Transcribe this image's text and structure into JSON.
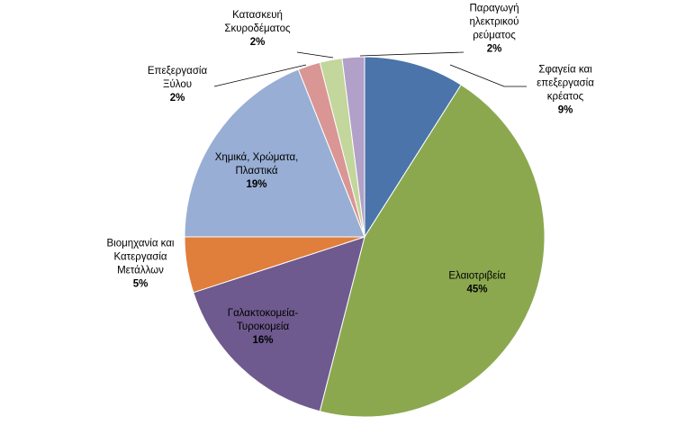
{
  "chart_data": {
    "type": "pie",
    "title": "",
    "slices": [
      {
        "label": "Σφαγεία και επεξεργασία κρέατος",
        "label_lines": [
          "Σφαγεία και",
          "επεξεργασία",
          "κρέατος"
        ],
        "value": 9,
        "value_label": "9%",
        "color": "#4A74AA"
      },
      {
        "label": "Ελαιοτριβεία",
        "label_lines": [
          "Ελαιοτριβεία"
        ],
        "value": 45,
        "value_label": "45%",
        "color": "#8BA84F"
      },
      {
        "label": "Γαλακτοκομεία-Τυροκομεία",
        "label_lines": [
          "Γαλακτοκομεία-",
          "Τυροκομεία"
        ],
        "value": 16,
        "value_label": "16%",
        "color": "#6E5A8E"
      },
      {
        "label": "Βιομηχανία και Κατεργασία Μετάλλων",
        "label_lines": [
          "Βιομηχανία και",
          "Κατεργασία",
          "Μετάλλων"
        ],
        "value": 5,
        "value_label": "5%",
        "color": "#E07E3C"
      },
      {
        "label": "Χημικά, Χρώματα, Πλαστικά",
        "label_lines": [
          "Χημικά, Χρώματα,",
          "Πλαστικά"
        ],
        "value": 19,
        "value_label": "19%",
        "color": "#98AED4"
      },
      {
        "label": "Επεξεργασία Ξύλου",
        "label_lines": [
          "Επεξεργασία",
          "Ξύλου"
        ],
        "value": 2,
        "value_label": "2%",
        "color": "#D99694"
      },
      {
        "label": "Κατασκευή Σκυροδέματος",
        "label_lines": [
          "Κατασκευή",
          "Σκυροδέματος"
        ],
        "value": 2,
        "value_label": "2%",
        "color": "#C3D69B"
      },
      {
        "label": "Παραγωγή ηλεκτρικού ρεύματος",
        "label_lines": [
          "Παραγωγή",
          "ηλεκτρικού",
          "ρεύματος"
        ],
        "value": 2,
        "value_label": "2%",
        "color": "#B1A0C7"
      }
    ]
  }
}
